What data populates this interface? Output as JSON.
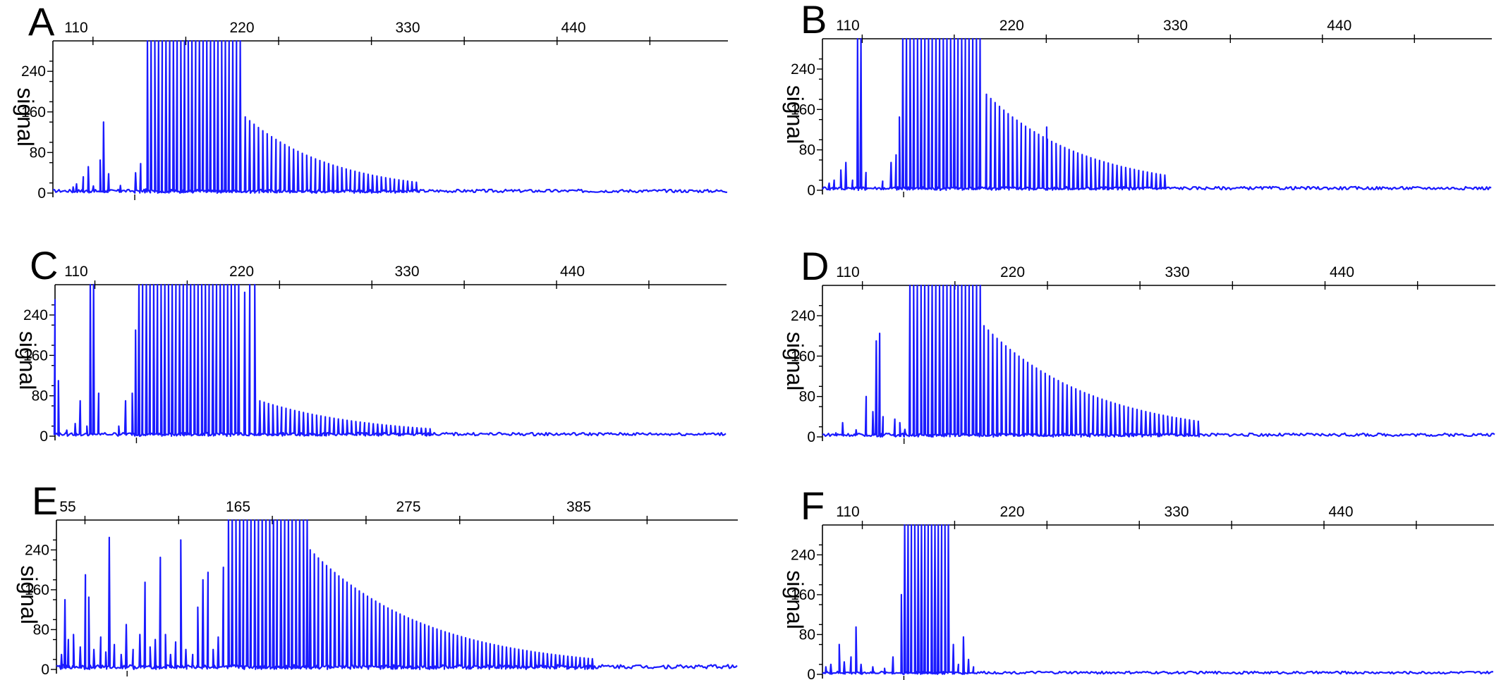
{
  "colors": {
    "trace": "#1a1aff",
    "axis": "#000000"
  },
  "chart_data": [
    {
      "panel": "A",
      "type": "line",
      "xlabel": "",
      "ylabel": "signal",
      "x_ticks": [
        110,
        220,
        330,
        440
      ],
      "y_ticks": [
        0,
        80,
        160,
        240
      ],
      "xlim": [
        100,
        500
      ],
      "ylim": [
        0,
        300
      ],
      "peaks": [
        {
          "x": 112,
          "y": 12
        },
        {
          "x": 114,
          "y": 18
        },
        {
          "x": 118,
          "y": 32
        },
        {
          "x": 121,
          "y": 52
        },
        {
          "x": 124,
          "y": 14
        },
        {
          "x": 128,
          "y": 65
        },
        {
          "x": 130,
          "y": 140
        },
        {
          "x": 133,
          "y": 38
        },
        {
          "x": 140,
          "y": 15
        },
        {
          "x": 149,
          "y": 40
        },
        {
          "x": 152,
          "y": 58
        },
        {
          "x": 155,
          "y": 8
        },
        {
          "x": 156,
          "y": 300,
          "n": 26,
          "step": 2.2
        },
        {
          "x": 214,
          "y": 150,
          "n": 40,
          "step": 2.6,
          "decay": 0.05
        }
      ],
      "baseline": 6
    },
    {
      "panel": "B",
      "type": "line",
      "xlabel": "",
      "ylabel": "signal",
      "x_ticks": [
        110,
        220,
        330,
        440
      ],
      "y_ticks": [
        0,
        80,
        160,
        240
      ],
      "xlim": [
        100,
        500
      ],
      "ylim": [
        0,
        300
      ],
      "peaks": [
        {
          "x": 104,
          "y": 14
        },
        {
          "x": 107,
          "y": 20
        },
        {
          "x": 111,
          "y": 40
        },
        {
          "x": 114,
          "y": 55
        },
        {
          "x": 118,
          "y": 20
        },
        {
          "x": 121,
          "y": 300
        },
        {
          "x": 123,
          "y": 300
        },
        {
          "x": 126,
          "y": 35
        },
        {
          "x": 136,
          "y": 18
        },
        {
          "x": 141,
          "y": 55
        },
        {
          "x": 144,
          "y": 70
        },
        {
          "x": 146,
          "y": 145
        },
        {
          "x": 148,
          "y": 300,
          "n": 22,
          "step": 2.2
        },
        {
          "x": 198,
          "y": 190,
          "n": 42,
          "step": 2.6,
          "decay": 0.045
        },
        {
          "x": 234,
          "y": 125
        }
      ],
      "baseline": 6
    },
    {
      "panel": "C",
      "type": "line",
      "xlabel": "",
      "ylabel": "signal",
      "x_ticks": [
        110,
        220,
        330,
        440
      ],
      "y_ticks": [
        0,
        80,
        160,
        240
      ],
      "xlim": [
        100,
        500
      ],
      "ylim": [
        0,
        300
      ],
      "peaks": [
        {
          "x": 100,
          "y": 270
        },
        {
          "x": 102,
          "y": 110
        },
        {
          "x": 107,
          "y": 12
        },
        {
          "x": 112,
          "y": 25
        },
        {
          "x": 115,
          "y": 70
        },
        {
          "x": 119,
          "y": 20
        },
        {
          "x": 121,
          "y": 300
        },
        {
          "x": 123,
          "y": 300
        },
        {
          "x": 126,
          "y": 85
        },
        {
          "x": 138,
          "y": 20
        },
        {
          "x": 142,
          "y": 70
        },
        {
          "x": 146,
          "y": 85
        },
        {
          "x": 148,
          "y": 210
        },
        {
          "x": 150,
          "y": 300,
          "n": 28,
          "step": 2.2
        },
        {
          "x": 213,
          "y": 285
        },
        {
          "x": 216,
          "y": 300
        },
        {
          "x": 219,
          "y": 300
        },
        {
          "x": 222,
          "y": 70,
          "n": 40,
          "step": 2.6,
          "decay": 0.04
        }
      ],
      "baseline": 6
    },
    {
      "panel": "D",
      "type": "line",
      "xlabel": "",
      "ylabel": "signal",
      "x_ticks": [
        110,
        220,
        330,
        440
      ],
      "y_ticks": [
        0,
        80,
        160,
        240
      ],
      "xlim": [
        100,
        500
      ],
      "ylim": [
        0,
        300
      ],
      "peaks": [
        {
          "x": 108,
          "y": 8
        },
        {
          "x": 112,
          "y": 28
        },
        {
          "x": 120,
          "y": 14
        },
        {
          "x": 126,
          "y": 80
        },
        {
          "x": 130,
          "y": 50
        },
        {
          "x": 132,
          "y": 190
        },
        {
          "x": 134,
          "y": 205
        },
        {
          "x": 136,
          "y": 40
        },
        {
          "x": 143,
          "y": 35
        },
        {
          "x": 146,
          "y": 28
        },
        {
          "x": 149,
          "y": 15
        },
        {
          "x": 152,
          "y": 300,
          "n": 20,
          "step": 2.2
        },
        {
          "x": 196,
          "y": 220,
          "n": 50,
          "step": 2.6,
          "decay": 0.04
        }
      ],
      "baseline": 6
    },
    {
      "panel": "E",
      "type": "line",
      "xlabel": "",
      "ylabel": "signal",
      "x_ticks": [
        55,
        165,
        275,
        385
      ],
      "y_ticks": [
        0,
        80,
        160,
        240
      ],
      "xlim": [
        52,
        452
      ],
      "ylim": [
        0,
        300
      ],
      "peaks": [
        {
          "x": 55,
          "y": 30
        },
        {
          "x": 57,
          "y": 140
        },
        {
          "x": 59,
          "y": 60
        },
        {
          "x": 62,
          "y": 70
        },
        {
          "x": 66,
          "y": 45
        },
        {
          "x": 69,
          "y": 190
        },
        {
          "x": 71,
          "y": 145
        },
        {
          "x": 74,
          "y": 40
        },
        {
          "x": 78,
          "y": 65
        },
        {
          "x": 81,
          "y": 35
        },
        {
          "x": 83,
          "y": 265
        },
        {
          "x": 86,
          "y": 50
        },
        {
          "x": 90,
          "y": 30
        },
        {
          "x": 93,
          "y": 90
        },
        {
          "x": 97,
          "y": 40
        },
        {
          "x": 101,
          "y": 70
        },
        {
          "x": 104,
          "y": 175
        },
        {
          "x": 107,
          "y": 45
        },
        {
          "x": 110,
          "y": 60
        },
        {
          "x": 113,
          "y": 225
        },
        {
          "x": 116,
          "y": 70
        },
        {
          "x": 119,
          "y": 30
        },
        {
          "x": 122,
          "y": 55
        },
        {
          "x": 125,
          "y": 260
        },
        {
          "x": 128,
          "y": 40
        },
        {
          "x": 132,
          "y": 30
        },
        {
          "x": 135,
          "y": 125
        },
        {
          "x": 138,
          "y": 180
        },
        {
          "x": 141,
          "y": 195
        },
        {
          "x": 144,
          "y": 40
        },
        {
          "x": 147,
          "y": 65
        },
        {
          "x": 150,
          "y": 205
        },
        {
          "x": 153,
          "y": 300,
          "n": 22,
          "step": 2.2
        },
        {
          "x": 201,
          "y": 240,
          "n": 70,
          "step": 2.4,
          "decay": 0.035
        }
      ],
      "baseline": 8
    },
    {
      "panel": "F",
      "type": "line",
      "xlabel": "",
      "ylabel": "signal",
      "x_ticks": [
        110,
        220,
        330,
        440
      ],
      "y_ticks": [
        0,
        80,
        160,
        240
      ],
      "xlim": [
        100,
        500
      ],
      "ylim": [
        0,
        300
      ],
      "peaks": [
        {
          "x": 102,
          "y": 15
        },
        {
          "x": 105,
          "y": 20
        },
        {
          "x": 110,
          "y": 60
        },
        {
          "x": 113,
          "y": 25
        },
        {
          "x": 117,
          "y": 35
        },
        {
          "x": 120,
          "y": 95
        },
        {
          "x": 123,
          "y": 20
        },
        {
          "x": 130,
          "y": 15
        },
        {
          "x": 137,
          "y": 12
        },
        {
          "x": 142,
          "y": 35
        },
        {
          "x": 147,
          "y": 160
        },
        {
          "x": 149,
          "y": 300,
          "n": 14,
          "step": 2.0
        },
        {
          "x": 178,
          "y": 60
        },
        {
          "x": 181,
          "y": 20
        },
        {
          "x": 184,
          "y": 75
        },
        {
          "x": 187,
          "y": 30
        },
        {
          "x": 190,
          "y": 15
        }
      ],
      "baseline": 5
    }
  ]
}
